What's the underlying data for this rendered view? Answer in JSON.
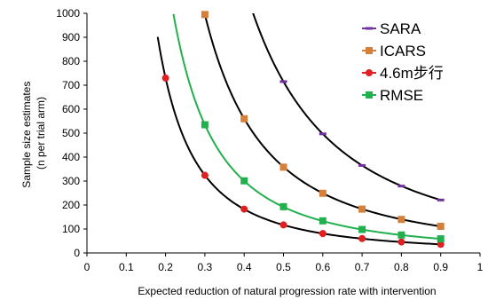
{
  "chart_data": {
    "type": "line",
    "title": "",
    "xlabel": "Expected reduction of natural progression rate with intervention",
    "ylabel_lines": [
      "Sample size estimates",
      "(n per trial arm)"
    ],
    "xlim": [
      0,
      1
    ],
    "ylim": [
      0,
      1000
    ],
    "x_ticks": [
      0,
      0.1,
      0.2,
      0.3,
      0.4,
      0.5,
      0.6,
      0.7,
      0.8,
      0.9,
      1
    ],
    "x_tick_labels": [
      "0",
      "0.1",
      "0.2",
      "0.3",
      "0.4",
      "0.5",
      "0.6",
      "0.7",
      "0.8",
      "0.9",
      "1"
    ],
    "y_ticks": [
      0,
      100,
      200,
      300,
      400,
      500,
      600,
      700,
      800,
      900,
      1000
    ],
    "y_tick_labels": [
      "0",
      "100",
      "200",
      "300",
      "400",
      "500",
      "600",
      "700",
      "800",
      "900",
      "1000"
    ],
    "grid": false,
    "legend_position": "top-right",
    "series": [
      {
        "name": "SARA",
        "color": "#7030a0",
        "marker": "dash",
        "x": [
          0.5,
          0.6,
          0.7,
          0.8,
          0.9
        ],
        "values": [
          715,
          497,
          365,
          279,
          221
        ]
      },
      {
        "name": "ICARS",
        "color": "#d47f3a",
        "marker": "square",
        "x": [
          0.3,
          0.4,
          0.5,
          0.6,
          0.7,
          0.8,
          0.9
        ],
        "values": [
          995,
          560,
          358,
          249,
          183,
          140,
          111
        ]
      },
      {
        "name": "4.6m步行",
        "color": "#e02020",
        "marker": "circle",
        "x": [
          0.2,
          0.3,
          0.4,
          0.5,
          0.6,
          0.7,
          0.8,
          0.9
        ],
        "values": [
          730,
          324,
          183,
          117,
          81,
          60,
          46,
          36
        ]
      },
      {
        "name": "RMSE",
        "color": "#22b04e",
        "marker": "square",
        "x": [
          0.3,
          0.4,
          0.5,
          0.6,
          0.7,
          0.8,
          0.9
        ],
        "values": [
          535,
          301,
          193,
          134,
          98,
          75,
          59
        ]
      }
    ],
    "fitted_curves": [
      {
        "series": "SARA",
        "color": "#000000",
        "x_from": 0.42,
        "x_to": 0.9
      },
      {
        "series": "ICARS",
        "color": "#000000",
        "x_from": 0.28,
        "x_to": 0.9
      },
      {
        "series": "4.6m步行",
        "color": "#000000",
        "x_from": 0.18,
        "x_to": 0.9
      },
      {
        "series": "RMSE",
        "color": "#22b04e",
        "x_from": 0.22,
        "x_to": 0.9
      }
    ]
  }
}
